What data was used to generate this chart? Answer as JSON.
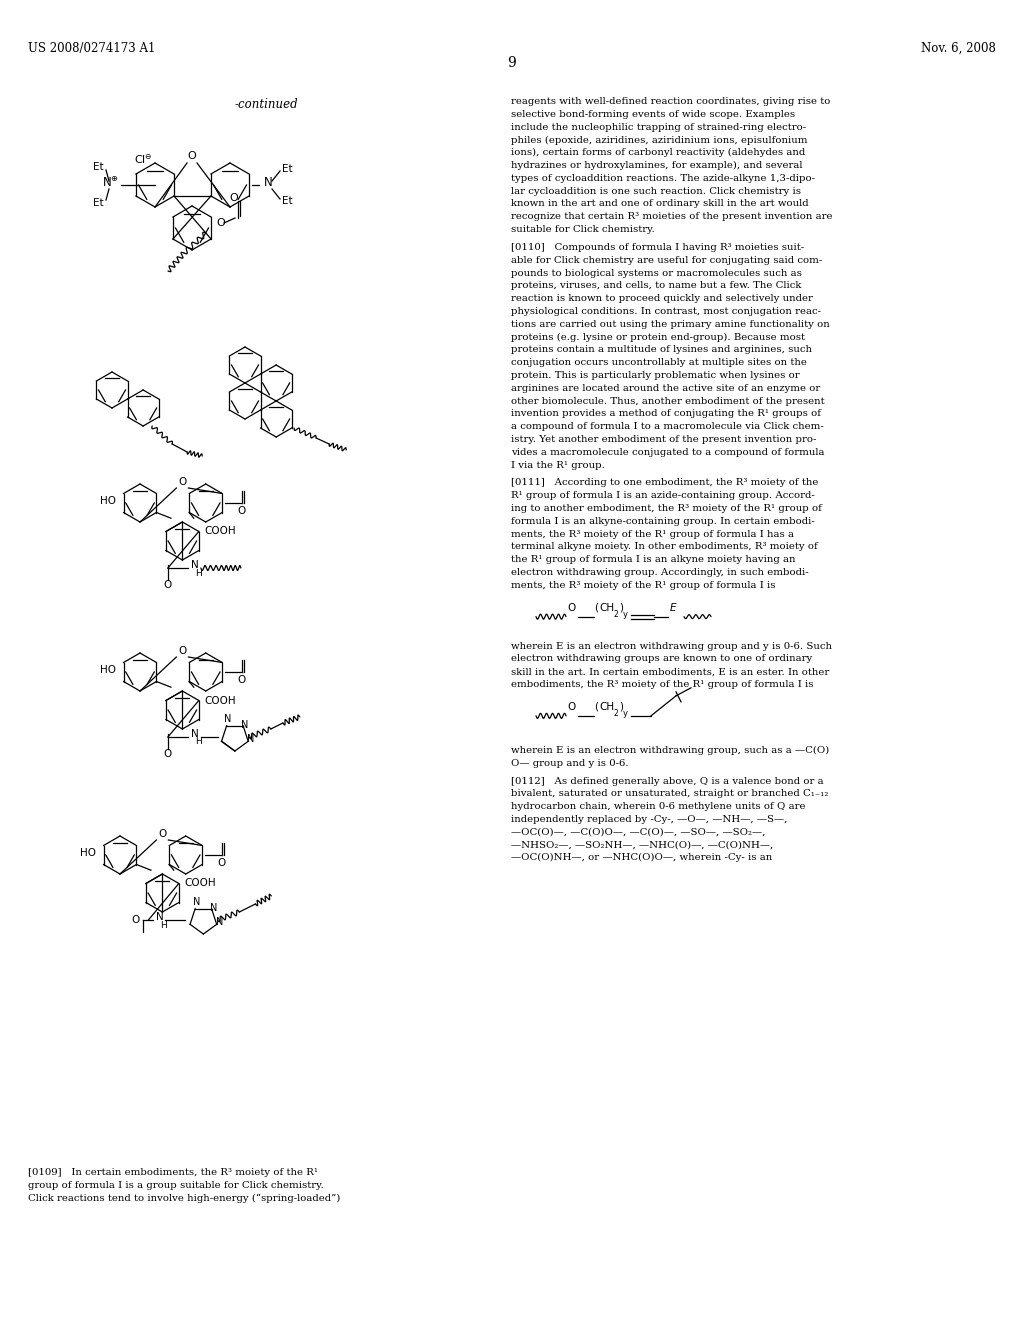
{
  "page_number": "9",
  "patent_number": "US 2008/0274173 A1",
  "date": "Nov. 6, 2008",
  "continued_label": "-continued",
  "background_color": "#ffffff",
  "text_color": "#000000",
  "right_texts": [
    "reagents with well-defined reaction coordinates, giving rise to\nselective bond-forming events of wide scope. Examples\ninclude the nucleophilic trapping of strained-ring electro-\nphiles (epoxide, aziridines, aziridinium ions, episulfonium\nions), certain forms of carbonyl reactivity (aldehydes and\nhydrazines or hydroxylamines, for example), and several\ntypes of cycloaddition reactions. The azide-alkyne 1,3-dipo-\nlar cycloaddition is one such reaction. Click chemistry is\nknown in the art and one of ordinary skill in the art would\nrecognize that certain R³ moieties of the present invention are\nsuitable for Click chemistry.",
    "[0110]   Compounds of formula I having R³ moieties suit-\nable for Click chemistry are useful for conjugating said com-\npounds to biological systems or macromolecules such as\nproteins, viruses, and cells, to name but a few. The Click\nreaction is known to proceed quickly and selectively under\nphysiological conditions. In contrast, most conjugation reac-\ntions are carried out using the primary amine functionality on\nproteins (e.g. lysine or protein end-group). Because most\nproteins contain a multitude of lysines and arginines, such\nconjugation occurs uncontrollably at multiple sites on the\nprotein. This is particularly problematic when lysines or\narginines are located around the active site of an enzyme or\nother biomolecule. Thus, another embodiment of the present\ninvention provides a method of conjugating the R¹ groups of\na compound of formula I to a macromolecule via Click chem-\nistry. Yet another embodiment of the present invention pro-\nvides a macromolecule conjugated to a compound of formula\nI via the R¹ group.",
    "[0111]   According to one embodiment, the R³ moiety of the\nR¹ group of formula I is an azide-containing group. Accord-\ning to another embodiment, the R³ moiety of the R¹ group of\nformula I is an alkyne-containing group. In certain embodi-\nments, the R³ moiety of the R¹ group of formula I has a\nterminal alkyne moiety. In other embodiments, R³ moiety of\nthe R¹ group of formula I is an alkyne moiety having an\nelectron withdrawing group. Accordingly, in such embodi-\nments, the R³ moiety of the R¹ group of formula I is"
  ],
  "right_text_formula1_after": "wherein E is an electron withdrawing group and y is 0-6. Such\nelectron withdrawing groups are known to one of ordinary\nskill in the art. In certain embodiments, E is an ester. In other\nembodiments, the R³ moiety of the R¹ group of formula I is",
  "right_text_formula2_after": "wherein E is an electron withdrawing group, such as a —C(O)\nO— group and y is 0-6.",
  "right_text_0112": "[0112]   As defined generally above, Q is a valence bond or a\nbivalent, saturated or unsaturated, straight or branched C₁₋₁₂\nhydrocarbon chain, wherein 0-6 methylene units of Q are\nindependently replaced by -Cy-, —O—, —NH—, —S—,\n—OC(O)—, —C(O)O—, —C(O)—, —SO—, —SO₂—,\n—NHSO₂—, —SO₂NH—, —NHC(O)—, —C(O)NH—,\n—OC(O)NH—, or —NHC(O)O—, wherein -Cy- is an",
  "left_caption": "[0109]   In certain embodiments, the R³ moiety of the R¹\ngroup of formula I is a group suitable for Click chemistry.\nClick reactions tend to involve high-energy (“spring-loaded”)"
}
